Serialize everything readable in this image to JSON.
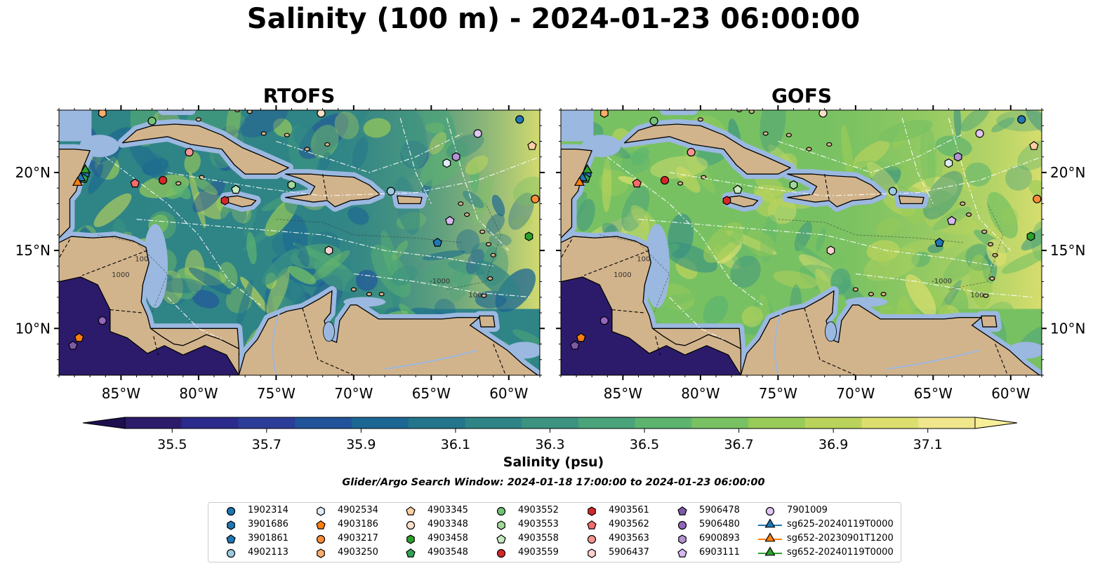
{
  "title": "Salinity (100 m) - 2024-01-23 06:00:00",
  "panels": [
    {
      "title": "RTOFS",
      "variant": "rtofs"
    },
    {
      "title": "GOFS",
      "variant": "gofs"
    }
  ],
  "map": {
    "lon_range": [
      -89,
      -58
    ],
    "lat_range": [
      7,
      24
    ],
    "lon_ticks": [
      "85°W",
      "80°W",
      "75°W",
      "70°W",
      "65°W",
      "60°W"
    ],
    "lon_tick_values": [
      -85,
      -80,
      -75,
      -70,
      -65,
      -60
    ],
    "lat_ticks": [
      "10°N",
      "15°N",
      "20°N"
    ],
    "lat_tick_values": [
      10,
      15,
      20
    ],
    "land_color": "#d2b48c",
    "shelf_color": "#9bb8e0",
    "contour_labels": [
      "100",
      "1000",
      "-1000"
    ]
  },
  "colorbar": {
    "label": "Salinity (psu)",
    "min": 35.4,
    "max": 37.2,
    "step": 0.1,
    "ticks": [
      "35.5",
      "35.7",
      "35.9",
      "36.1",
      "36.3",
      "36.5",
      "36.7",
      "36.9",
      "37.1"
    ],
    "colors": [
      "#2c1b6b",
      "#2a2b8c",
      "#2b3d98",
      "#21539b",
      "#1b6693",
      "#23758b",
      "#2f8486",
      "#3b9380",
      "#4aa37a",
      "#5db46f",
      "#78c163",
      "#99cb58",
      "#bad35c",
      "#dbdf6e",
      "#f0e68c"
    ]
  },
  "search_window": "Glider/Argo Search Window: 2024-01-18 17:00:00 to 2024-01-23 06:00:00",
  "markers": [
    {
      "id": "1902314",
      "shape": "circle",
      "color": "#1f77b4",
      "lon": -59.3,
      "lat": 23.4
    },
    {
      "id": "3901686",
      "shape": "hexagon",
      "color": "#1f77b4",
      "lon": -87.3,
      "lat": 19.9
    },
    {
      "id": "3901861",
      "shape": "pentagon",
      "color": "#1f77b4",
      "lon": -64.6,
      "lat": 15.5
    },
    {
      "id": "4902113",
      "shape": "circle",
      "color": "#9ecae1",
      "lon": -67.6,
      "lat": 18.8
    },
    {
      "id": "4902534",
      "shape": "hexagon",
      "color": "#deebf7",
      "lon": -64.0,
      "lat": 20.6
    },
    {
      "id": "4903186",
      "shape": "pentagon",
      "color": "#ff7f0e",
      "lon": -87.7,
      "lat": 9.4
    },
    {
      "id": "4903217",
      "shape": "circle",
      "color": "#fd8d3c",
      "lon": -58.3,
      "lat": 18.3
    },
    {
      "id": "4903250",
      "shape": "hexagon",
      "color": "#fdae6b",
      "lon": -86.2,
      "lat": 23.8
    },
    {
      "id": "4903345",
      "shape": "pentagon",
      "color": "#fdd0a2",
      "lon": -58.5,
      "lat": 21.7
    },
    {
      "id": "4903348",
      "shape": "circle",
      "color": "#fde0c8",
      "lon": -72.1,
      "lat": 23.8
    },
    {
      "id": "4903458",
      "shape": "hexagon",
      "color": "#2ca02c",
      "lon": -58.7,
      "lat": 15.9
    },
    {
      "id": "4903548",
      "shape": "pentagon",
      "color": "#31a354",
      "lon": -87.4,
      "lat": 19.6
    },
    {
      "id": "4903552",
      "shape": "circle",
      "color": "#74c476",
      "lon": -83.0,
      "lat": 23.3
    },
    {
      "id": "4903553",
      "shape": "hexagon",
      "color": "#a1d99b",
      "lon": -74.0,
      "lat": 19.2
    },
    {
      "id": "4903558",
      "shape": "pentagon",
      "color": "#c7e9c0",
      "lon": -77.6,
      "lat": 18.9
    },
    {
      "id": "4903559",
      "shape": "circle",
      "color": "#d62728",
      "lon": -82.3,
      "lat": 19.5
    },
    {
      "id": "4903561",
      "shape": "hexagon",
      "color": "#d62728",
      "lon": -78.3,
      "lat": 18.2
    },
    {
      "id": "4903562",
      "shape": "pentagon",
      "color": "#f46b6b",
      "lon": -84.1,
      "lat": 19.3
    },
    {
      "id": "4903563",
      "shape": "circle",
      "color": "#f79494",
      "lon": -80.6,
      "lat": 21.3
    },
    {
      "id": "5906437",
      "shape": "hexagon",
      "color": "#fdd0d0",
      "lon": -71.6,
      "lat": 15.0
    },
    {
      "id": "5906478",
      "shape": "pentagon",
      "color": "#7b5aa6",
      "lon": -88.1,
      "lat": 8.9
    },
    {
      "id": "5906480",
      "shape": "circle",
      "color": "#9467bd",
      "lon": -86.2,
      "lat": 10.5
    },
    {
      "id": "6900893",
      "shape": "hexagon",
      "color": "#b294d3",
      "lon": -63.4,
      "lat": 21.0
    },
    {
      "id": "6903111",
      "shape": "pentagon",
      "color": "#d6b8f0",
      "lon": -63.8,
      "lat": 16.9
    },
    {
      "id": "7901009",
      "shape": "circle",
      "color": "#e0c4f4",
      "lon": -62.0,
      "lat": 22.5
    },
    {
      "id": "sg625-20240119T0000",
      "shape": "triangle",
      "color": "#1f77b4",
      "lon": -87.6,
      "lat": 19.6
    },
    {
      "id": "sg652-20230901T1200",
      "shape": "triangle",
      "color": "#ff7f0e",
      "lon": -87.8,
      "lat": 19.3
    },
    {
      "id": "sg652-20240119T0000",
      "shape": "triangle",
      "color": "#2ca02c",
      "lon": -87.3,
      "lat": 20.1
    }
  ],
  "legend_labels": [
    "1902314",
    "3901686",
    "3901861",
    "4902113",
    "4902534",
    "4903186",
    "4903217",
    "4903250",
    "4903345",
    "4903348",
    "4903458",
    "4903548",
    "4903552",
    "4903553",
    "4903558",
    "4903559",
    "4903561",
    "4903562",
    "4903563",
    "5906437",
    "5906478",
    "5906480",
    "6900893",
    "6903111",
    "7901009",
    "sg625-20240119T0000",
    "sg652-20230901T1200",
    "sg652-20240119T0000"
  ]
}
